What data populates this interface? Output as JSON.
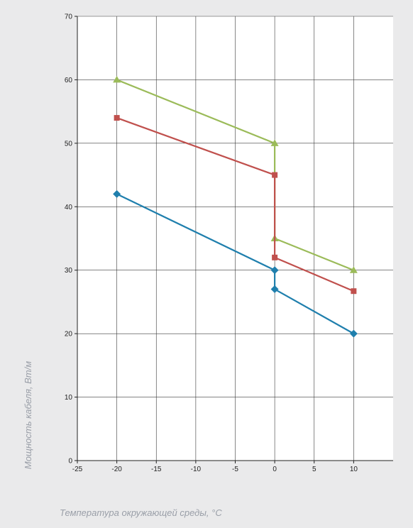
{
  "chart_data": {
    "type": "line",
    "title": "",
    "xlabel": "Температура окружающей среды, °C",
    "ylabel": "Мощность кабеля, Вт/м",
    "xlim": [
      -25,
      15
    ],
    "ylim": [
      0,
      70
    ],
    "xticks": [
      -25,
      -20,
      -15,
      -10,
      -5,
      0,
      5,
      10
    ],
    "yticks": [
      0,
      10,
      20,
      30,
      40,
      50,
      60,
      70
    ],
    "grid": true,
    "legend": "none",
    "series": [
      {
        "color": "#9bbb59",
        "marker": "triangle",
        "points": [
          [
            -20,
            60
          ],
          [
            0,
            50
          ],
          [
            0,
            35
          ],
          [
            10,
            30
          ]
        ]
      },
      {
        "color": "#c0504d",
        "marker": "square",
        "points": [
          [
            -20,
            54
          ],
          [
            0,
            45
          ],
          [
            0,
            32
          ],
          [
            10,
            26.7
          ]
        ]
      },
      {
        "color": "#1f7fad",
        "marker": "diamond",
        "points": [
          [
            -20,
            42
          ],
          [
            0,
            30
          ],
          [
            0,
            27
          ],
          [
            10,
            20
          ]
        ]
      }
    ]
  }
}
